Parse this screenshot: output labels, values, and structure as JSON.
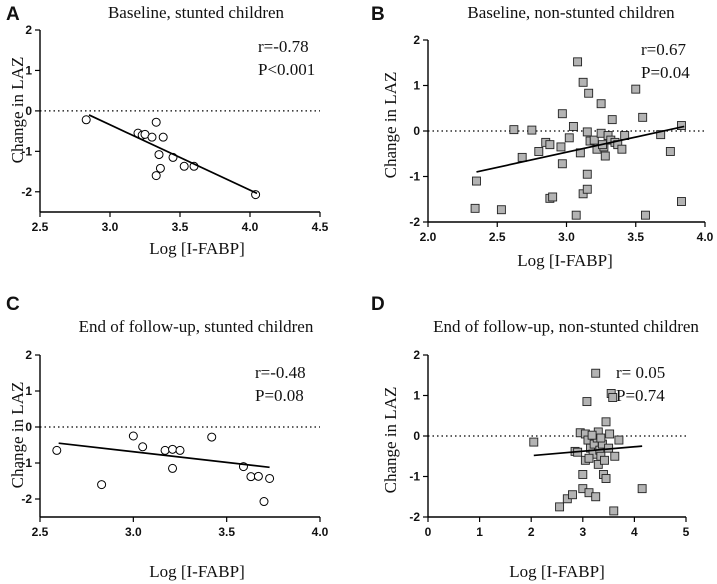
{
  "figure": {
    "panels": [
      {
        "letter": "A",
        "title": "Baseline, stunted children",
        "stat_r": "r=-0.78",
        "stat_p": "P<0.001",
        "xlabel": "Log [I-FABP]",
        "ylabel": "Change in LAZ"
      },
      {
        "letter": "B",
        "title": "Baseline, non-stunted children",
        "stat_r": "r=0.67",
        "stat_p": "P=0.04",
        "xlabel": "Log [I-FABP]",
        "ylabel": "Change in LAZ"
      },
      {
        "letter": "C",
        "title": "End of follow-up, stunted children",
        "stat_r": "r=-0.48",
        "stat_p": "P=0.08",
        "xlabel": "Log [I-FABP]",
        "ylabel": "Change in LAZ"
      },
      {
        "letter": "D",
        "title": "End of follow-up, non-stunted children",
        "stat_r": "r= 0.05",
        "stat_p": "P=0.74",
        "xlabel": "Log [I-FABP]",
        "ylabel": "Change in LAZ"
      }
    ]
  },
  "chart_data": [
    {
      "type": "scatter",
      "title": "Baseline, stunted children",
      "xlabel": "Log [I-FABP]",
      "ylabel": "Change in LAZ",
      "xlim": [
        2.5,
        4.5
      ],
      "ylim": [
        -2.5,
        2
      ],
      "xticks": [
        "2.5",
        "3.0",
        "3.5",
        "4.0",
        "4.5"
      ],
      "yticks": [
        "2",
        "1",
        "0",
        "-1",
        "-2"
      ],
      "marker": "open-circle",
      "reference_line_y": 0,
      "points": [
        [
          2.83,
          -0.22
        ],
        [
          3.2,
          -0.55
        ],
        [
          3.23,
          -0.6
        ],
        [
          3.25,
          -0.58
        ],
        [
          3.3,
          -0.65
        ],
        [
          3.33,
          -0.28
        ],
        [
          3.35,
          -1.08
        ],
        [
          3.36,
          -1.42
        ],
        [
          3.33,
          -1.6
        ],
        [
          3.38,
          -0.65
        ],
        [
          3.45,
          -1.15
        ],
        [
          3.53,
          -1.37
        ],
        [
          3.6,
          -1.37
        ],
        [
          4.04,
          -2.07
        ]
      ],
      "fit_line": [
        [
          2.85,
          -0.1
        ],
        [
          4.05,
          -2.04
        ]
      ],
      "r": "r=-0.78",
      "p": "P<0.001"
    },
    {
      "type": "scatter",
      "title": "Baseline, non-stunted children",
      "xlabel": "Log [I-FABP]",
      "ylabel": "Change in LAZ",
      "xlim": [
        2.0,
        4.0
      ],
      "ylim": [
        -2,
        2
      ],
      "xticks": [
        "2.0",
        "2.5",
        "3.0",
        "3.5",
        "4.0"
      ],
      "yticks": [
        "2",
        "1",
        "0",
        "-1",
        "-2"
      ],
      "marker": "filled-square",
      "reference_line_y": 0,
      "points": [
        [
          2.35,
          -1.1
        ],
        [
          2.34,
          -1.7
        ],
        [
          2.53,
          -1.73
        ],
        [
          2.62,
          0.03
        ],
        [
          2.68,
          -0.58
        ],
        [
          2.75,
          0.02
        ],
        [
          2.8,
          -0.45
        ],
        [
          2.85,
          -0.25
        ],
        [
          2.88,
          -0.3
        ],
        [
          2.88,
          -1.48
        ],
        [
          2.9,
          -1.45
        ],
        [
          2.96,
          -0.35
        ],
        [
          2.97,
          -0.72
        ],
        [
          2.97,
          0.38
        ],
        [
          3.02,
          -0.15
        ],
        [
          3.05,
          0.1
        ],
        [
          3.07,
          -1.85
        ],
        [
          3.08,
          1.52
        ],
        [
          3.1,
          -0.48
        ],
        [
          3.12,
          -1.38
        ],
        [
          3.12,
          1.07
        ],
        [
          3.15,
          -0.02
        ],
        [
          3.15,
          -1.28
        ],
        [
          3.16,
          0.83
        ],
        [
          3.17,
          -0.22
        ],
        [
          3.2,
          -0.2
        ],
        [
          3.22,
          -0.4
        ],
        [
          3.25,
          0.6
        ],
        [
          3.25,
          -0.05
        ],
        [
          3.27,
          -0.35
        ],
        [
          3.28,
          -0.55
        ],
        [
          3.3,
          -0.1
        ],
        [
          3.32,
          -0.2
        ],
        [
          3.33,
          0.25
        ],
        [
          3.35,
          -0.25
        ],
        [
          3.37,
          -0.3
        ],
        [
          3.4,
          -0.4
        ],
        [
          3.42,
          -0.1
        ],
        [
          3.5,
          0.92
        ],
        [
          3.55,
          0.3
        ],
        [
          3.57,
          -1.85
        ],
        [
          3.68,
          -0.08
        ],
        [
          3.75,
          -0.45
        ],
        [
          3.83,
          0.12
        ],
        [
          3.83,
          -1.55
        ],
        [
          3.15,
          -0.95
        ],
        [
          3.26,
          -0.3
        ]
      ],
      "fit_line": [
        [
          2.35,
          -0.9
        ],
        [
          3.85,
          0.1
        ]
      ],
      "r": "r=0.67",
      "p": "P=0.04"
    },
    {
      "type": "scatter",
      "title": "End of follow-up, stunted children",
      "xlabel": "Log [I-FABP]",
      "ylabel": "Change in LAZ",
      "xlim": [
        2.5,
        4.0
      ],
      "ylim": [
        -2.5,
        2
      ],
      "xticks": [
        "2.5",
        "3.0",
        "3.5",
        "4.0"
      ],
      "yticks": [
        "2",
        "1",
        "0",
        "-1",
        "-2"
      ],
      "marker": "open-circle",
      "reference_line_y": 0,
      "points": [
        [
          2.59,
          -0.65
        ],
        [
          2.83,
          -1.6
        ],
        [
          3.0,
          -0.25
        ],
        [
          3.05,
          -0.55
        ],
        [
          3.17,
          -0.65
        ],
        [
          3.21,
          -0.62
        ],
        [
          3.21,
          -1.15
        ],
        [
          3.25,
          -0.65
        ],
        [
          3.42,
          -0.28
        ],
        [
          3.59,
          -1.1
        ],
        [
          3.63,
          -1.38
        ],
        [
          3.67,
          -1.37
        ],
        [
          3.7,
          -2.07
        ],
        [
          3.73,
          -1.43
        ]
      ],
      "fit_line": [
        [
          2.6,
          -0.45
        ],
        [
          3.73,
          -1.12
        ]
      ],
      "r": "r=-0.48",
      "p": "P=0.08"
    },
    {
      "type": "scatter",
      "title": "End of follow-up, non-stunted children",
      "xlabel": "Log [I-FABP]",
      "ylabel": "Change in LAZ",
      "xlim": [
        0,
        5
      ],
      "ylim": [
        -2,
        2
      ],
      "xticks": [
        "0",
        "1",
        "2",
        "3",
        "4",
        "5"
      ],
      "yticks": [
        "2",
        "1",
        "0",
        "-1",
        "-2"
      ],
      "marker": "filled-square",
      "reference_line_y": 0,
      "points": [
        [
          2.05,
          -0.15
        ],
        [
          2.55,
          -1.75
        ],
        [
          2.7,
          -1.55
        ],
        [
          2.8,
          -1.45
        ],
        [
          2.85,
          -0.38
        ],
        [
          2.9,
          -0.4
        ],
        [
          2.95,
          0.08
        ],
        [
          3.0,
          -1.3
        ],
        [
          3.0,
          -0.95
        ],
        [
          3.05,
          -0.6
        ],
        [
          3.05,
          0.05
        ],
        [
          3.08,
          0.85
        ],
        [
          3.1,
          -0.1
        ],
        [
          3.12,
          -1.4
        ],
        [
          3.15,
          -0.3
        ],
        [
          3.2,
          -0.45
        ],
        [
          3.22,
          -0.2
        ],
        [
          3.25,
          -1.5
        ],
        [
          3.25,
          1.55
        ],
        [
          3.28,
          -0.05
        ],
        [
          3.3,
          0.1
        ],
        [
          3.3,
          -0.7
        ],
        [
          3.33,
          -0.35
        ],
        [
          3.35,
          -0.5
        ],
        [
          3.38,
          -0.2
        ],
        [
          3.4,
          -0.95
        ],
        [
          3.42,
          -0.6
        ],
        [
          3.45,
          0.35
        ],
        [
          3.45,
          -1.05
        ],
        [
          3.5,
          -0.3
        ],
        [
          3.52,
          0.05
        ],
        [
          3.55,
          1.05
        ],
        [
          3.58,
          0.95
        ],
        [
          3.6,
          -1.85
        ],
        [
          3.62,
          -0.5
        ],
        [
          3.7,
          -0.1
        ],
        [
          4.15,
          -1.3
        ],
        [
          3.18,
          0.02
        ],
        [
          3.35,
          -0.05
        ],
        [
          3.12,
          -0.55
        ]
      ],
      "fit_line": [
        [
          2.05,
          -0.48
        ],
        [
          4.15,
          -0.25
        ]
      ],
      "r": "r= 0.05",
      "p": "P=0.74"
    }
  ]
}
